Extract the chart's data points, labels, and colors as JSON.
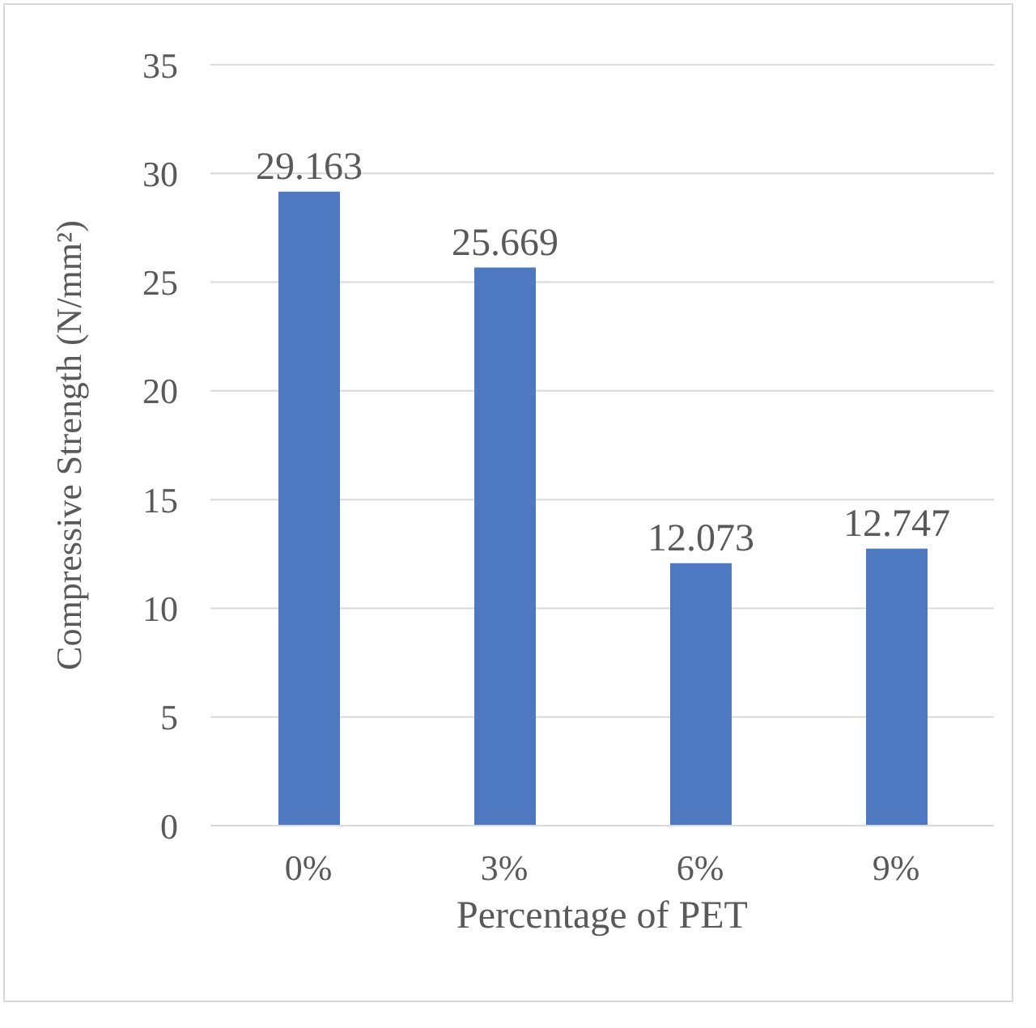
{
  "chart_data": {
    "type": "bar",
    "xlabel": "Percentage of PET",
    "ylabel": "Compressive Strength (N/mm²)",
    "categories": [
      "0%",
      "3%",
      "6%",
      "9%"
    ],
    "values": [
      29.163,
      25.669,
      12.073,
      12.747
    ],
    "color": "#4e79c1",
    "ylim": [
      0,
      35
    ],
    "yticks": [
      0,
      5,
      10,
      15,
      20,
      25,
      30,
      35
    ],
    "grid": "y",
    "data_labels": true
  }
}
